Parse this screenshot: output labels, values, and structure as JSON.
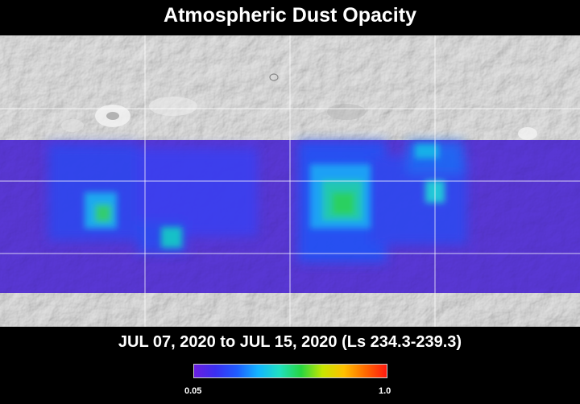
{
  "title": "Atmospheric Dust Opacity",
  "date_range": "JUL 07, 2020 to JUL 15, 2020 (Ls 234.3-239.3)",
  "colorbar": {
    "min_label": "0.05",
    "max_label": "1.0",
    "colors": [
      "#6a1fe0",
      "#3b2ff0",
      "#1f5cff",
      "#13b5ff",
      "#20e0c0",
      "#27d640",
      "#c6e600",
      "#ffc000",
      "#ff6a00",
      "#ff1a10"
    ]
  },
  "colors": {
    "background": "#000000",
    "low_opacity": "#5a38d8",
    "polar_terrain": "#cfcfcf"
  }
}
